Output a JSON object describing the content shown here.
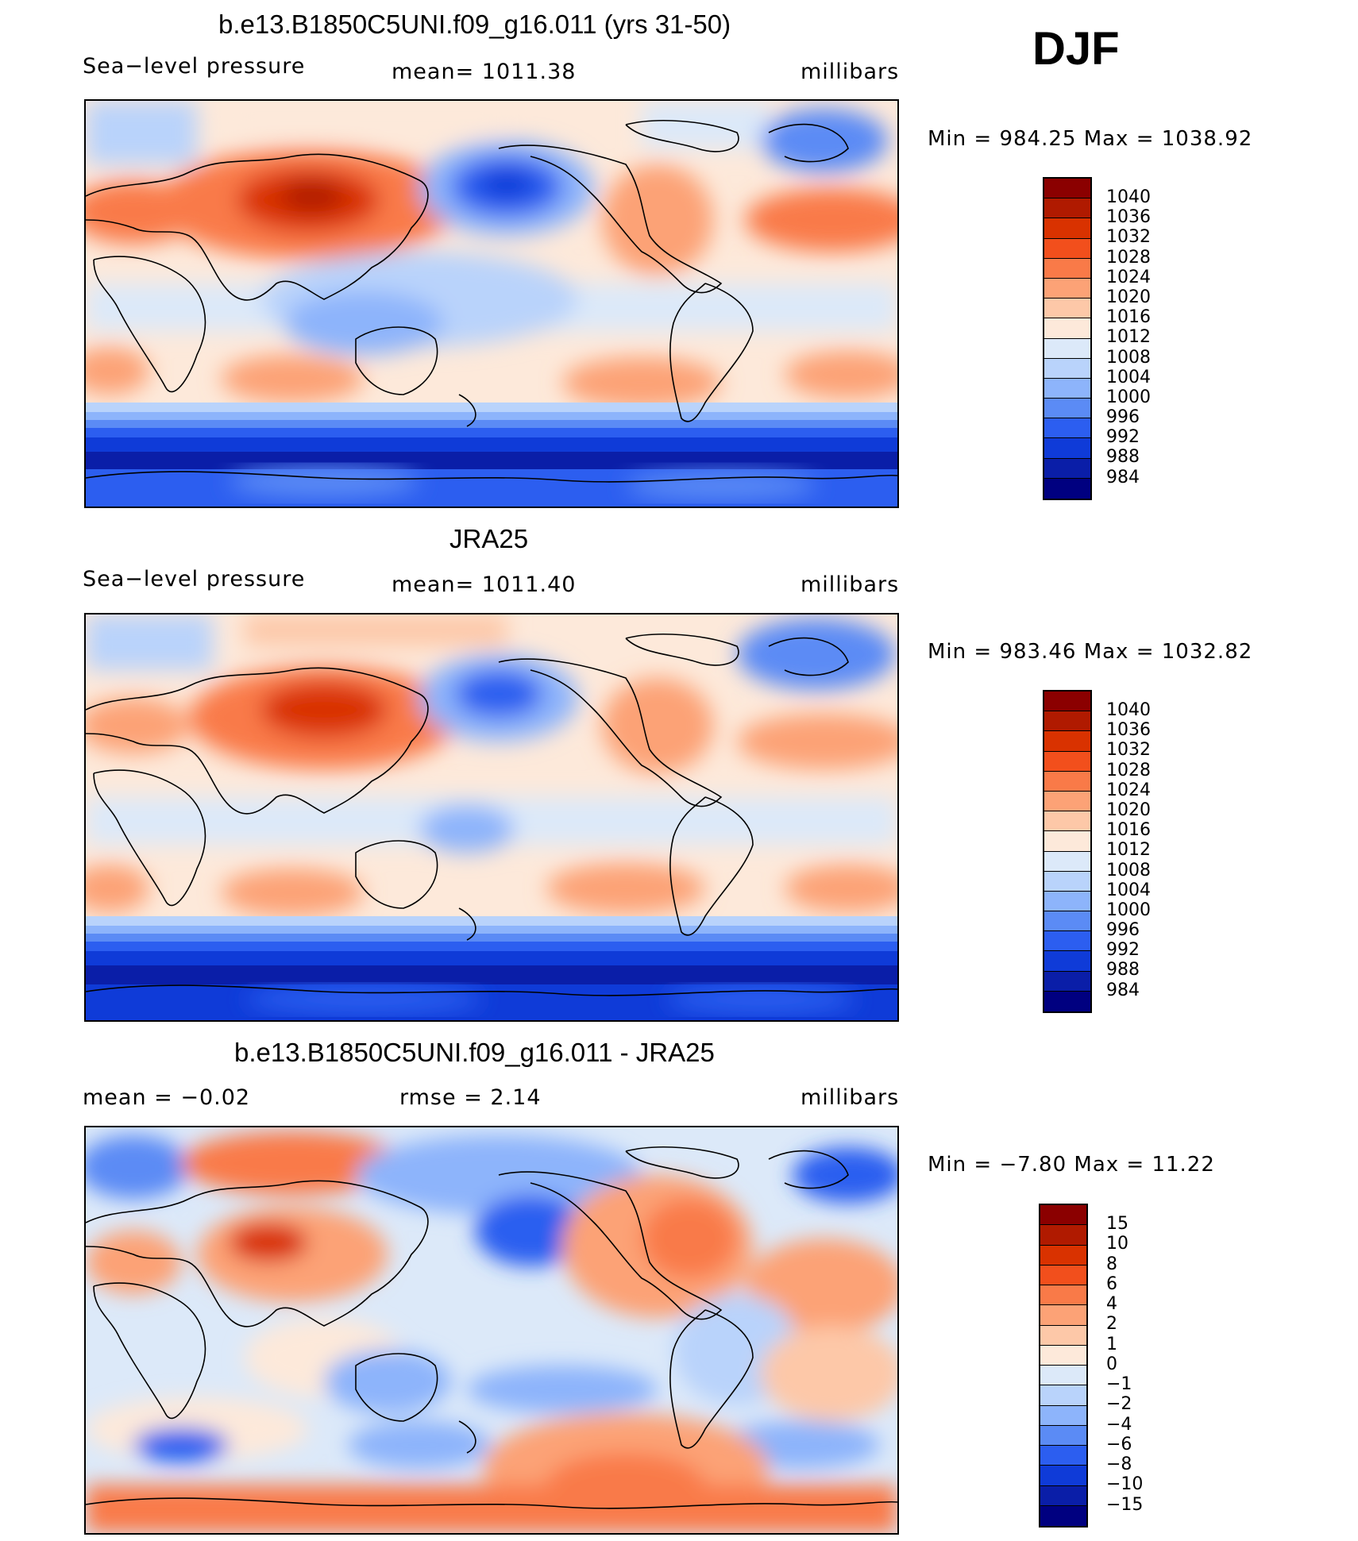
{
  "season": "DJF",
  "panels": [
    {
      "title": "b.e13.B1850C5UNI.f09_g16.011 (yrs 31-50)",
      "left_label": "Sea−level pressure",
      "center_label": "mean=  1011.38",
      "units": "millibars",
      "minmax": "Min  =  984.25  Max  =  1038.92",
      "colorbar": {
        "levels": [
          "1040",
          "1036",
          "1032",
          "1028",
          "1024",
          "1020",
          "1016",
          "1012",
          "1008",
          "1004",
          "1000",
          "996",
          "992",
          "988",
          "984"
        ],
        "colors": [
          "#8b0000",
          "#b01a00",
          "#d93200",
          "#f24f1c",
          "#f97a48",
          "#fca276",
          "#fdc8a8",
          "#fde9da",
          "#dce9f9",
          "#b9d3fb",
          "#8db4fb",
          "#5b8bf5",
          "#2c5ef0",
          "#0f3bd8",
          "#0a1ea8",
          "#000080"
        ]
      }
    },
    {
      "title": "JRA25",
      "left_label": "Sea−level pressure",
      "center_label": "mean=  1011.40",
      "units": "millibars",
      "minmax": "Min  =  983.46  Max  =  1032.82",
      "colorbar": {
        "levels": [
          "1040",
          "1036",
          "1032",
          "1028",
          "1024",
          "1020",
          "1016",
          "1012",
          "1008",
          "1004",
          "1000",
          "996",
          "992",
          "988",
          "984"
        ],
        "colors": [
          "#8b0000",
          "#b01a00",
          "#d93200",
          "#f24f1c",
          "#f97a48",
          "#fca276",
          "#fdc8a8",
          "#fde9da",
          "#dce9f9",
          "#b9d3fb",
          "#8db4fb",
          "#5b8bf5",
          "#2c5ef0",
          "#0f3bd8",
          "#0a1ea8",
          "#000080"
        ]
      }
    },
    {
      "title": "b.e13.B1850C5UNI.f09_g16.011 - JRA25",
      "left_label": "mean  =    −0.02",
      "center_label": "rmse  =      2.14",
      "units": "millibars",
      "minmax": "Min  =    −7.80  Max  =    11.22",
      "colorbar": {
        "levels": [
          "15",
          "10",
          "8",
          "6",
          "4",
          "2",
          "1",
          "0",
          "−1",
          "−2",
          "−4",
          "−6",
          "−8",
          "−10",
          "−15"
        ],
        "colors": [
          "#8b0000",
          "#b01a00",
          "#d93200",
          "#f24f1c",
          "#f97a48",
          "#fca276",
          "#fdc8a8",
          "#fde9da",
          "#dce9f9",
          "#b9d3fb",
          "#8db4fb",
          "#5b8bf5",
          "#2c5ef0",
          "#0f3bd8",
          "#0a1ea8",
          "#000080"
        ]
      }
    }
  ]
}
